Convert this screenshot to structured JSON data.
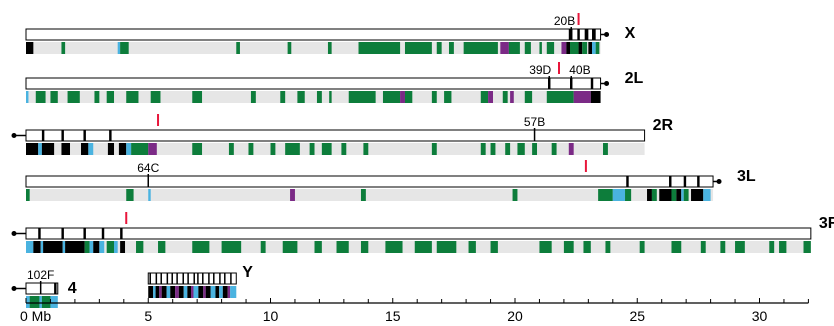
{
  "colors": {
    "euchromatin_track": "#e6e6e6",
    "heterochromatin": "#000000",
    "green_domain": "#0d7d3b",
    "cyan_domain": "#4ab3e0",
    "purple_domain": "#7b2a86",
    "marker": "#e8163b"
  },
  "chromosomes": [
    {
      "id": "X",
      "label": "X",
      "length": 23.5,
      "centromere": "right",
      "bands": [
        {
          "label": "20B",
          "pos": 22.3
        }
      ],
      "marker": 22.6,
      "het": [
        [
          22.2,
          22.35
        ],
        [
          22.55,
          22.65
        ],
        [
          22.85,
          23.0
        ],
        [
          23.15,
          23.3
        ]
      ],
      "domains": [
        {
          "c": "black",
          "s": 0.0,
          "e": 0.3
        },
        {
          "c": "green",
          "s": 1.45,
          "e": 1.6
        },
        {
          "c": "cyan",
          "s": 3.75,
          "e": 3.85
        },
        {
          "c": "green",
          "s": 3.85,
          "e": 4.2
        },
        {
          "c": "green",
          "s": 8.6,
          "e": 8.75
        },
        {
          "c": "green",
          "s": 10.7,
          "e": 10.85
        },
        {
          "c": "green",
          "s": 12.35,
          "e": 12.5
        },
        {
          "c": "green",
          "s": 13.6,
          "e": 15.3
        },
        {
          "c": "green",
          "s": 15.5,
          "e": 16.6
        },
        {
          "c": "green",
          "s": 16.8,
          "e": 17.0
        },
        {
          "c": "green",
          "s": 17.3,
          "e": 17.5
        },
        {
          "c": "green",
          "s": 17.9,
          "e": 19.3
        },
        {
          "c": "purple",
          "s": 19.4,
          "e": 19.75
        },
        {
          "c": "green",
          "s": 19.75,
          "e": 20.2
        },
        {
          "c": "green",
          "s": 20.4,
          "e": 20.65
        },
        {
          "c": "green",
          "s": 21.0,
          "e": 21.1
        },
        {
          "c": "green",
          "s": 21.3,
          "e": 21.6
        },
        {
          "c": "purple",
          "s": 21.9,
          "e": 22.1
        },
        {
          "c": "black",
          "s": 22.1,
          "e": 22.25
        },
        {
          "c": "green",
          "s": 22.25,
          "e": 22.6
        },
        {
          "c": "black",
          "s": 22.6,
          "e": 22.75
        },
        {
          "c": "green",
          "s": 22.75,
          "e": 22.95
        },
        {
          "c": "black",
          "s": 23.0,
          "e": 23.15
        },
        {
          "c": "cyan",
          "s": 23.15,
          "e": 23.3
        },
        {
          "c": "green",
          "s": 23.3,
          "e": 23.45
        }
      ]
    },
    {
      "id": "2L",
      "label": "2L",
      "length": 23.5,
      "centromere": "right",
      "bands": [
        {
          "label": "39D",
          "pos": 21.4
        },
        {
          "label": "40B",
          "pos": 22.3
        }
      ],
      "marker": 21.8,
      "het": [
        [
          21.35,
          21.45
        ],
        [
          22.25,
          22.35
        ],
        [
          23.1,
          23.2
        ]
      ],
      "domains": [
        {
          "c": "cyan",
          "s": 0.0,
          "e": 0.1
        },
        {
          "c": "green",
          "s": 0.4,
          "e": 0.8
        },
        {
          "c": "green",
          "s": 1.0,
          "e": 1.3
        },
        {
          "c": "green",
          "s": 1.7,
          "e": 2.2
        },
        {
          "c": "green",
          "s": 2.8,
          "e": 3.0
        },
        {
          "c": "green",
          "s": 3.3,
          "e": 3.6
        },
        {
          "c": "green",
          "s": 4.1,
          "e": 4.6
        },
        {
          "c": "green",
          "s": 5.1,
          "e": 5.5
        },
        {
          "c": "green",
          "s": 6.8,
          "e": 7.2
        },
        {
          "c": "green",
          "s": 9.2,
          "e": 9.4
        },
        {
          "c": "green",
          "s": 10.4,
          "e": 10.6
        },
        {
          "c": "green",
          "s": 11.1,
          "e": 11.4
        },
        {
          "c": "green",
          "s": 11.9,
          "e": 12.1
        },
        {
          "c": "green",
          "s": 12.4,
          "e": 12.5
        },
        {
          "c": "green",
          "s": 13.2,
          "e": 14.3
        },
        {
          "c": "green",
          "s": 14.6,
          "e": 15.3
        },
        {
          "c": "purple",
          "s": 15.3,
          "e": 15.5
        },
        {
          "c": "green",
          "s": 15.5,
          "e": 15.8
        },
        {
          "c": "green",
          "s": 16.6,
          "e": 16.8
        },
        {
          "c": "green",
          "s": 17.1,
          "e": 17.4
        },
        {
          "c": "green",
          "s": 18.6,
          "e": 18.9
        },
        {
          "c": "purple",
          "s": 18.9,
          "e": 19.1
        },
        {
          "c": "green",
          "s": 19.5,
          "e": 19.7
        },
        {
          "c": "purple",
          "s": 19.8,
          "e": 19.95
        },
        {
          "c": "green",
          "s": 20.4,
          "e": 20.7
        },
        {
          "c": "green",
          "s": 21.3,
          "e": 22.4
        },
        {
          "c": "purple",
          "s": 22.4,
          "e": 23.1
        },
        {
          "c": "black",
          "s": 23.1,
          "e": 23.5
        }
      ]
    },
    {
      "id": "2R",
      "label": "2R",
      "length": 25.3,
      "centromere": "left",
      "bands": [
        {
          "label": "57B",
          "pos": 20.8
        }
      ],
      "marker": 5.4,
      "het": [
        [
          0.65,
          0.75
        ],
        [
          1.45,
          1.55
        ],
        [
          2.35,
          2.45
        ],
        [
          3.4,
          3.5
        ]
      ],
      "domains": [
        {
          "c": "black",
          "s": 0.0,
          "e": 0.5
        },
        {
          "c": "cyan",
          "s": 0.5,
          "e": 0.65
        },
        {
          "c": "black",
          "s": 0.65,
          "e": 1.15
        },
        {
          "c": "black",
          "s": 1.45,
          "e": 1.8
        },
        {
          "c": "black",
          "s": 2.25,
          "e": 2.55
        },
        {
          "c": "cyan",
          "s": 2.55,
          "e": 2.75
        },
        {
          "c": "black",
          "s": 3.35,
          "e": 3.6
        },
        {
          "c": "black",
          "s": 3.8,
          "e": 4.1
        },
        {
          "c": "cyan",
          "s": 4.1,
          "e": 4.3
        },
        {
          "c": "green",
          "s": 4.3,
          "e": 5.0
        },
        {
          "c": "purple",
          "s": 5.0,
          "e": 5.35
        },
        {
          "c": "green",
          "s": 6.8,
          "e": 7.2
        },
        {
          "c": "green",
          "s": 8.3,
          "e": 8.5
        },
        {
          "c": "green",
          "s": 9.1,
          "e": 9.3
        },
        {
          "c": "green",
          "s": 10.0,
          "e": 10.2
        },
        {
          "c": "green",
          "s": 10.6,
          "e": 11.2
        },
        {
          "c": "green",
          "s": 11.6,
          "e": 11.8
        },
        {
          "c": "green",
          "s": 12.1,
          "e": 12.5
        },
        {
          "c": "green",
          "s": 12.9,
          "e": 13.1
        },
        {
          "c": "green",
          "s": 13.8,
          "e": 14.0
        },
        {
          "c": "green",
          "s": 16.6,
          "e": 16.8
        },
        {
          "c": "green",
          "s": 18.6,
          "e": 18.8
        },
        {
          "c": "green",
          "s": 19.0,
          "e": 19.2
        },
        {
          "c": "green",
          "s": 19.6,
          "e": 19.8
        },
        {
          "c": "green",
          "s": 20.1,
          "e": 20.4
        },
        {
          "c": "green",
          "s": 20.7,
          "e": 20.9
        },
        {
          "c": "green",
          "s": 21.5,
          "e": 21.7
        },
        {
          "c": "purple",
          "s": 22.2,
          "e": 22.4
        },
        {
          "c": "green",
          "s": 23.6,
          "e": 23.8
        }
      ]
    },
    {
      "id": "3L",
      "label": "3L",
      "length": 28.1,
      "centromere": "right",
      "bands": [
        {
          "label": "64C",
          "pos": 5.0
        }
      ],
      "marker": 22.9,
      "het": [
        [
          24.55,
          24.65
        ],
        [
          26.3,
          26.4
        ],
        [
          26.9,
          27.0
        ],
        [
          27.45,
          27.55
        ]
      ],
      "domains": [
        {
          "c": "green",
          "s": 0.0,
          "e": 0.15
        },
        {
          "c": "green",
          "s": 4.1,
          "e": 4.4
        },
        {
          "c": "cyan",
          "s": 5.0,
          "e": 5.1
        },
        {
          "c": "purple",
          "s": 10.8,
          "e": 11.0
        },
        {
          "c": "green",
          "s": 13.7,
          "e": 13.9
        },
        {
          "c": "green",
          "s": 19.9,
          "e": 20.1
        },
        {
          "c": "green",
          "s": 23.4,
          "e": 24.0
        },
        {
          "c": "cyan",
          "s": 24.0,
          "e": 24.5
        },
        {
          "c": "green",
          "s": 24.5,
          "e": 24.75
        },
        {
          "c": "black",
          "s": 25.4,
          "e": 25.6
        },
        {
          "c": "green",
          "s": 25.6,
          "e": 25.8
        },
        {
          "c": "black",
          "s": 25.9,
          "e": 26.4
        },
        {
          "c": "green",
          "s": 26.4,
          "e": 26.6
        },
        {
          "c": "black",
          "s": 26.6,
          "e": 26.8
        },
        {
          "c": "cyan",
          "s": 26.8,
          "e": 26.9
        },
        {
          "c": "green",
          "s": 26.9,
          "e": 27.1
        },
        {
          "c": "black",
          "s": 27.2,
          "e": 27.7
        },
        {
          "c": "cyan",
          "s": 27.7,
          "e": 28.0
        }
      ]
    },
    {
      "id": "3R",
      "label": "3R",
      "length": 32.1,
      "centromere": "left",
      "bands": [],
      "marker": 4.1,
      "het": [
        [
          0.5,
          0.6
        ],
        [
          1.45,
          1.55
        ],
        [
          2.35,
          2.45
        ],
        [
          3.1,
          3.2
        ],
        [
          3.85,
          3.95
        ]
      ],
      "domains": [
        {
          "c": "cyan",
          "s": 0.0,
          "e": 0.3
        },
        {
          "c": "black",
          "s": 0.3,
          "e": 0.6
        },
        {
          "c": "cyan",
          "s": 0.6,
          "e": 0.7
        },
        {
          "c": "black",
          "s": 0.7,
          "e": 1.5
        },
        {
          "c": "cyan",
          "s": 1.5,
          "e": 1.6
        },
        {
          "c": "black",
          "s": 1.6,
          "e": 2.4
        },
        {
          "c": "green",
          "s": 2.4,
          "e": 2.6
        },
        {
          "c": "cyan",
          "s": 2.6,
          "e": 2.75
        },
        {
          "c": "black",
          "s": 2.75,
          "e": 3.0
        },
        {
          "c": "cyan",
          "s": 3.0,
          "e": 3.2
        },
        {
          "c": "green",
          "s": 3.3,
          "e": 3.6
        },
        {
          "c": "cyan",
          "s": 3.6,
          "e": 3.75
        },
        {
          "c": "black",
          "s": 3.85,
          "e": 4.05
        },
        {
          "c": "green",
          "s": 4.5,
          "e": 4.8
        },
        {
          "c": "green",
          "s": 5.4,
          "e": 5.7
        },
        {
          "c": "green",
          "s": 6.8,
          "e": 7.5
        },
        {
          "c": "green",
          "s": 8.0,
          "e": 8.8
        },
        {
          "c": "green",
          "s": 9.6,
          "e": 9.8
        },
        {
          "c": "green",
          "s": 10.5,
          "e": 11.1
        },
        {
          "c": "green",
          "s": 11.8,
          "e": 12.1
        },
        {
          "c": "green",
          "s": 12.7,
          "e": 13.2
        },
        {
          "c": "green",
          "s": 13.7,
          "e": 14.0
        },
        {
          "c": "green",
          "s": 14.7,
          "e": 15.4
        },
        {
          "c": "green",
          "s": 15.9,
          "e": 16.6
        },
        {
          "c": "green",
          "s": 16.8,
          "e": 17.6
        },
        {
          "c": "green",
          "s": 18.1,
          "e": 18.4
        },
        {
          "c": "green",
          "s": 19.0,
          "e": 19.3
        },
        {
          "c": "green",
          "s": 21.0,
          "e": 21.5
        },
        {
          "c": "green",
          "s": 22.0,
          "e": 22.4
        },
        {
          "c": "green",
          "s": 22.8,
          "e": 23.1
        },
        {
          "c": "green",
          "s": 23.7,
          "e": 23.9
        },
        {
          "c": "green",
          "s": 25.1,
          "e": 25.3
        },
        {
          "c": "green",
          "s": 26.4,
          "e": 26.8
        },
        {
          "c": "green",
          "s": 27.6,
          "e": 27.8
        },
        {
          "c": "green",
          "s": 28.4,
          "e": 28.6
        },
        {
          "c": "green",
          "s": 29.0,
          "e": 29.4
        },
        {
          "c": "green",
          "s": 30.4,
          "e": 30.6
        },
        {
          "c": "green",
          "s": 30.8,
          "e": 31.1
        },
        {
          "c": "green",
          "s": 31.8,
          "e": 32.1
        }
      ]
    },
    {
      "id": "4",
      "label": "4",
      "length": 1.3,
      "centromere": "left",
      "bands": [
        {
          "label": "102F",
          "pos": 0.6
        }
      ],
      "marker": null,
      "het": [
        [
          1.15,
          1.25
        ]
      ],
      "domains": [
        {
          "c": "cyan",
          "s": 0.0,
          "e": 0.15
        },
        {
          "c": "green",
          "s": 0.15,
          "e": 0.55
        },
        {
          "c": "cyan",
          "s": 0.55,
          "e": 0.65
        },
        {
          "c": "green",
          "s": 0.65,
          "e": 1.0
        },
        {
          "c": "cyan",
          "s": 1.0,
          "e": 1.3
        }
      ]
    },
    {
      "id": "Y",
      "label": "Y",
      "length": 3.6,
      "centromere": "none",
      "start": 5.0,
      "bands": [],
      "marker": null,
      "het": [
        [
          5.05,
          5.1
        ],
        [
          5.3,
          5.35
        ],
        [
          5.5,
          5.55
        ],
        [
          5.75,
          5.8
        ],
        [
          5.95,
          6.0
        ],
        [
          6.15,
          6.2
        ],
        [
          6.4,
          6.45
        ],
        [
          6.6,
          6.65
        ],
        [
          6.85,
          6.9
        ],
        [
          7.0,
          7.05
        ],
        [
          7.2,
          7.25
        ],
        [
          7.45,
          7.5
        ],
        [
          7.65,
          7.7
        ],
        [
          7.9,
          7.95
        ],
        [
          8.1,
          8.15
        ],
        [
          8.35,
          8.4
        ]
      ],
      "domains": [
        {
          "c": "black",
          "s": 5.0,
          "e": 5.2
        },
        {
          "c": "cyan",
          "s": 5.2,
          "e": 5.3
        },
        {
          "c": "black",
          "s": 5.3,
          "e": 5.45
        },
        {
          "c": "purple",
          "s": 5.45,
          "e": 5.55
        },
        {
          "c": "black",
          "s": 5.55,
          "e": 5.75
        },
        {
          "c": "cyan",
          "s": 5.75,
          "e": 5.9
        },
        {
          "c": "black",
          "s": 5.9,
          "e": 6.1
        },
        {
          "c": "purple",
          "s": 6.1,
          "e": 6.25
        },
        {
          "c": "black",
          "s": 6.25,
          "e": 6.45
        },
        {
          "c": "cyan",
          "s": 6.45,
          "e": 6.6
        },
        {
          "c": "black",
          "s": 6.6,
          "e": 6.75
        },
        {
          "c": "purple",
          "s": 6.75,
          "e": 6.85
        },
        {
          "c": "cyan",
          "s": 6.85,
          "e": 7.05
        },
        {
          "c": "black",
          "s": 7.05,
          "e": 7.25
        },
        {
          "c": "purple",
          "s": 7.25,
          "e": 7.35
        },
        {
          "c": "black",
          "s": 7.35,
          "e": 7.55
        },
        {
          "c": "cyan",
          "s": 7.55,
          "e": 7.75
        },
        {
          "c": "black",
          "s": 7.75,
          "e": 7.9
        },
        {
          "c": "cyan",
          "s": 7.9,
          "e": 8.05
        },
        {
          "c": "black",
          "s": 8.05,
          "e": 8.25
        },
        {
          "c": "purple",
          "s": 8.25,
          "e": 8.35
        },
        {
          "c": "cyan",
          "s": 8.35,
          "e": 8.6
        }
      ]
    }
  ],
  "axis": {
    "unit_label": "0 Mb",
    "major_ticks": [
      0,
      5,
      10,
      15,
      20,
      25,
      30
    ],
    "tick_labels": [
      "0 Mb",
      "5",
      "10",
      "15",
      "20",
      "25",
      "30"
    ],
    "max": 32
  }
}
